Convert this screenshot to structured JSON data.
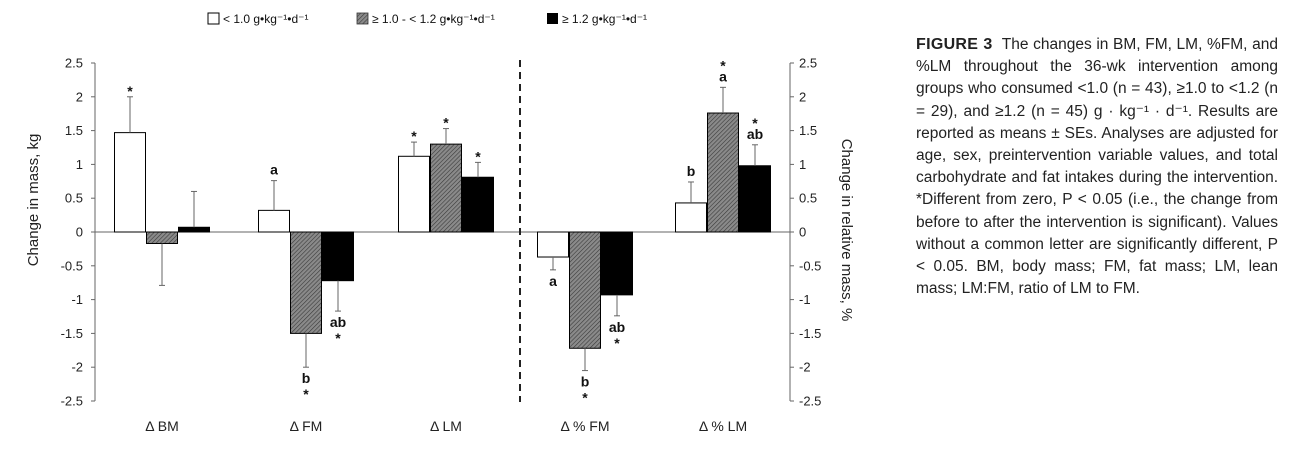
{
  "legend": [
    {
      "label": "< 1.0 g•kg⁻¹•d⁻¹",
      "pattern": "white"
    },
    {
      "label": "≥ 1.0 - < 1.2 g•kg⁻¹•d⁻¹",
      "pattern": "hatched-gray"
    },
    {
      "label": "≥ 1.2 g•kg⁻¹•d⁻¹",
      "pattern": "black"
    }
  ],
  "colors": {
    "group1": "#ffffff",
    "group2": "#707070",
    "group3": "#000000",
    "axis": "#555555"
  },
  "chart_data": {
    "type": "bar",
    "categories": [
      "Δ BM",
      "Δ FM",
      "Δ LM",
      "Δ % FM",
      "Δ % LM"
    ],
    "left_axis_categories": [
      "Δ BM",
      "Δ FM",
      "Δ LM"
    ],
    "right_axis_categories": [
      "Δ % FM",
      "Δ % LM"
    ],
    "ylabel": "Change in mass, kg",
    "ylabel_right": "Change in relative mass, %",
    "ylim": [
      -2.5,
      2.5
    ],
    "ylim_right": [
      -2.5,
      2.5
    ],
    "yticks": [
      "2.5",
      "2",
      "1.5",
      "1",
      "0.5",
      "0",
      "-0.5",
      "-1",
      "-1.5",
      "-2",
      "-2.5"
    ],
    "series": [
      {
        "name": "< 1.0 g•kg⁻¹•d⁻¹",
        "values": [
          1.47,
          0.32,
          1.12,
          -0.37,
          0.43
        ],
        "errors": [
          0.53,
          0.44,
          0.21,
          0.19,
          0.31
        ],
        "letters": [
          "",
          "a",
          "",
          "a",
          "b"
        ],
        "stars": [
          "*",
          "",
          "*",
          "",
          ""
        ]
      },
      {
        "name": "≥ 1.0 - < 1.2 g•kg⁻¹•d⁻¹",
        "values": [
          -0.17,
          -1.5,
          1.3,
          -1.72,
          1.76
        ],
        "errors": [
          0.62,
          0.5,
          0.23,
          0.33,
          0.38
        ],
        "letters": [
          "",
          "b",
          "",
          "b",
          "a"
        ],
        "stars": [
          "",
          "*",
          "*",
          "*",
          "*"
        ]
      },
      {
        "name": "≥ 1.2 g•kg⁻¹•d⁻¹",
        "values": [
          0.07,
          -0.72,
          0.81,
          -0.93,
          0.98
        ],
        "errors": [
          0.53,
          0.45,
          0.22,
          0.31,
          0.31
        ],
        "letters": [
          "",
          "ab",
          "",
          "ab",
          "ab"
        ],
        "stars": [
          "",
          "*",
          "*",
          "*",
          "*"
        ]
      }
    ]
  },
  "caption": {
    "label": "FIGURE 3",
    "text": "The changes in BM, FM, LM, %FM, and %LM throughout the 36-wk intervention among groups who consumed <1.0 (n = 43), ≥1.0 to <1.2 (n = 29), and ≥1.2 (n = 45) g · kg⁻¹ · d⁻¹. Results are reported as means ± SEs. Analyses are adjusted for age, sex, preintervention variable values, and total carbohydrate and fat intakes during the intervention. *Different from zero, P < 0.05 (i.e., the change from before to after the intervention is significant). Values without a common letter are significantly different, P < 0.05. BM, body mass; FM, fat mass; LM, lean mass; LM:FM, ratio of LM to FM."
  }
}
